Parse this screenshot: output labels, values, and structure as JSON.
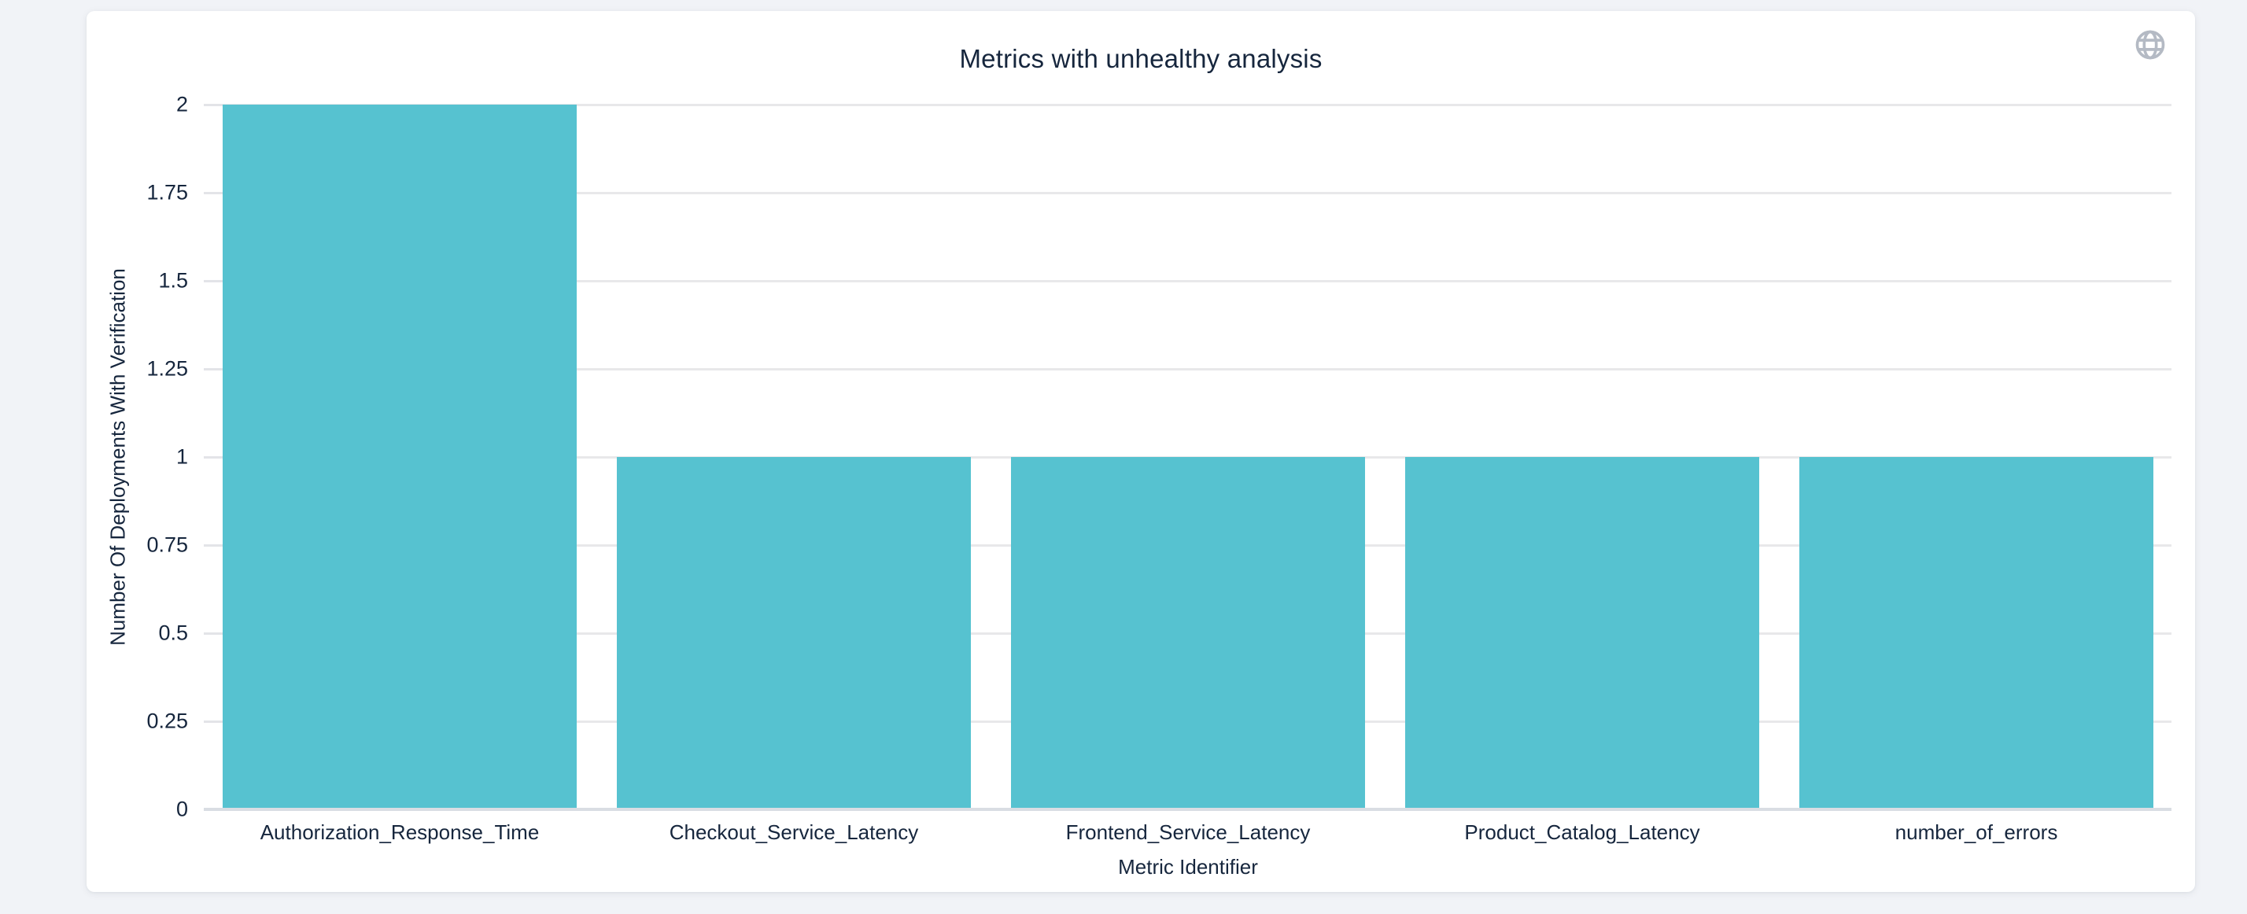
{
  "page": {
    "background_color": "#f1f3f7",
    "card_color": "#ffffff",
    "text_color": "#16263d"
  },
  "header": {
    "globe_icon": "globe-icon",
    "globe_icon_color": "#b4bac4"
  },
  "chart_data": {
    "type": "bar",
    "title": "Metrics with unhealthy analysis",
    "categories": [
      "Authorization_Response_Time",
      "Checkout_Service_Latency",
      "Frontend_Service_Latency",
      "Product_Catalog_Latency",
      "number_of_errors"
    ],
    "values": [
      2,
      1,
      1,
      1,
      1
    ],
    "xlabel": "Metric Identifier",
    "ylabel": "Number Of Deployments With Verification",
    "ylim": [
      0,
      2
    ],
    "ytick_labels": [
      "0",
      "0.25",
      "0.5",
      "0.75",
      "1",
      "1.25",
      "1.5",
      "1.75",
      "2"
    ],
    "yticks": [
      0,
      0.25,
      0.5,
      0.75,
      1,
      1.25,
      1.5,
      1.75,
      2
    ],
    "grid": true,
    "legend": false,
    "bar_color": "#56c2d0",
    "grid_color": "#e8e8ea",
    "tick_color": "#e3e4e8",
    "axis_line_color": "#d9dde3"
  }
}
